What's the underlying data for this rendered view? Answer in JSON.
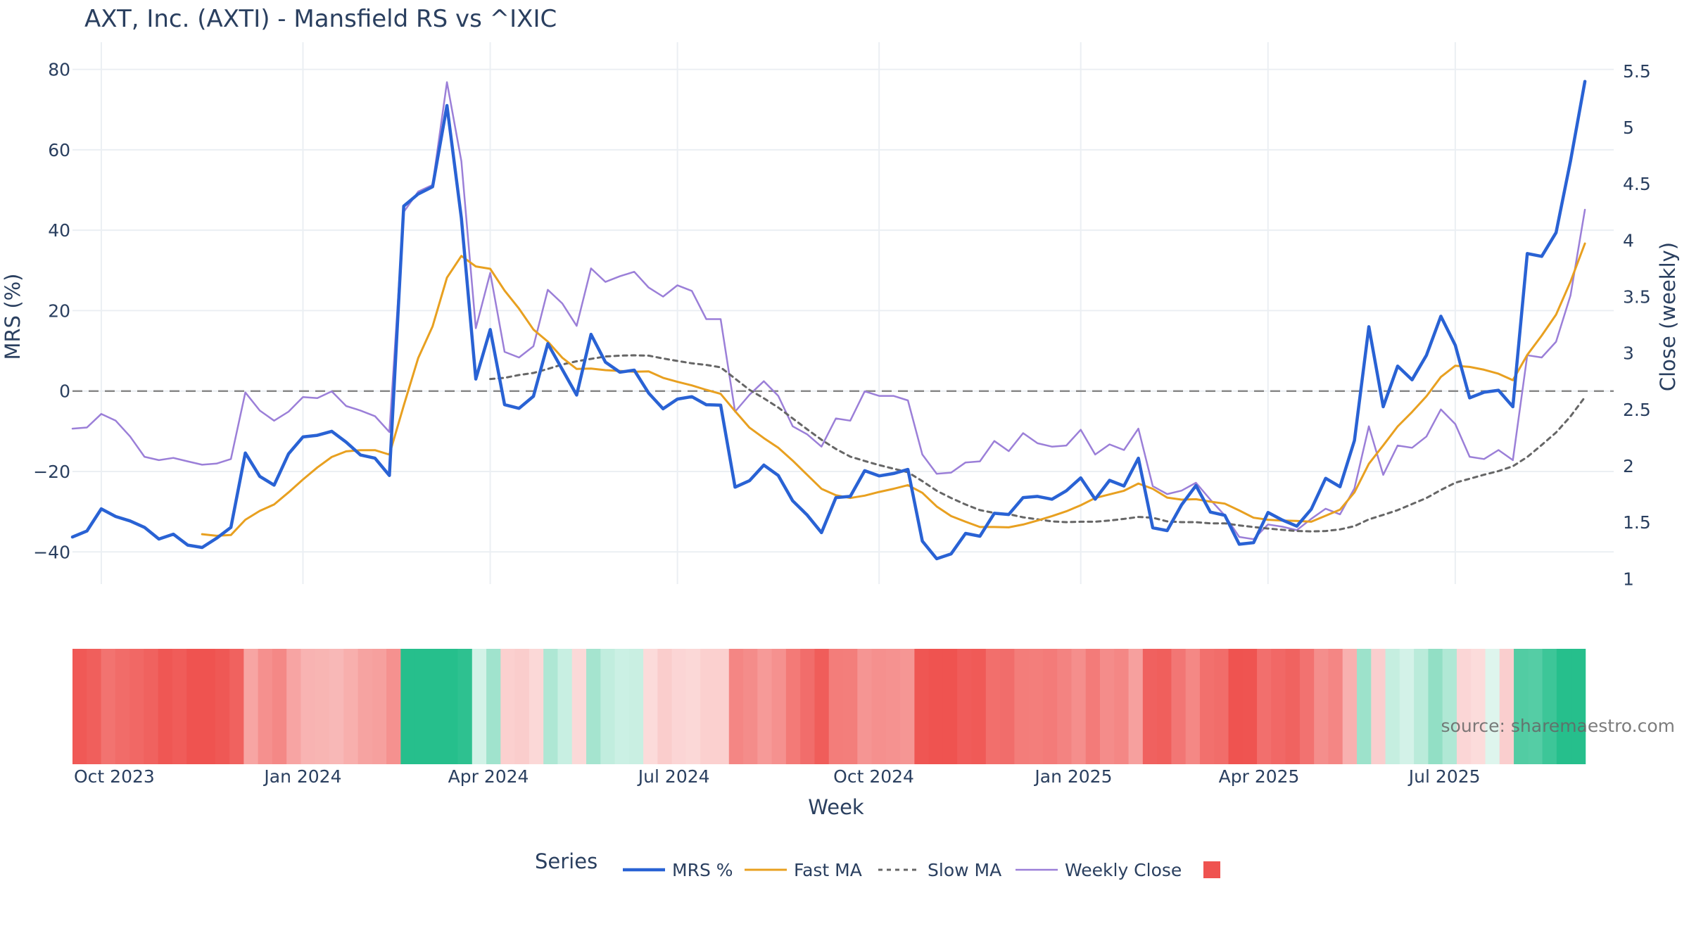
{
  "chart_data": {
    "type": "line",
    "title": "AXT, Inc. (AXTI) - Mansfield RS vs ^IXIC",
    "xlabel": "Week",
    "ylabel_left": "MRS (%)",
    "ylabel_right": "Close (weekly)",
    "ylim_left": [
      -48,
      85
    ],
    "ylim_right": [
      0.952,
      5.692
    ],
    "y_ticks_left": [
      80,
      60,
      40,
      20,
      0,
      -20,
      -40
    ],
    "y_tick_labels_left": [
      "80",
      "60",
      "40",
      "20",
      "0",
      "−20",
      "−40"
    ],
    "y_ticks_right": [
      5.5,
      5,
      4.5,
      4,
      3.5,
      3,
      2.5,
      2,
      1.5,
      1
    ],
    "y_tick_labels_right": [
      "5.5",
      "5",
      "4.5",
      "4",
      "3.5",
      "3",
      "2.5",
      "2",
      "1.5",
      "1"
    ],
    "x_tick_index": [
      2,
      16,
      29,
      42,
      56,
      70,
      83,
      96
    ],
    "x_tick_labels": [
      "Oct 2023",
      "Jan 2024",
      "Apr 2024",
      "Jul 2024",
      "Oct 2024",
      "Jan 2025",
      "Apr 2025",
      "Jul 2025"
    ],
    "zero_line": 0,
    "legend_title": "Series",
    "legend_position": "bottom",
    "source_text": "source: sharemaestro.com",
    "colors": {
      "mrs": "#2962d4",
      "fast": "#e8a020",
      "slow": "#666666",
      "close": "#9b7fd8",
      "grid": "#ebeff3",
      "zero": "#888888",
      "neg": "#ef5350",
      "pos": "#26bf8c"
    },
    "weeks": 108,
    "series": [
      {
        "name": "MRS %",
        "axis": "left",
        "values": [
          -36.3,
          -34.8,
          -29.3,
          -31.2,
          -32.3,
          -33.9,
          -36.8,
          -35.6,
          -38.3,
          -38.9,
          -36.6,
          -33.9,
          -15.4,
          -21.2,
          -23.4,
          -15.6,
          -11.4,
          -11,
          -10,
          -12.7,
          -15.9,
          -16.7,
          -21,
          46,
          49,
          50.8,
          71,
          43,
          3,
          15.3,
          -3.4,
          -4.3,
          -1.3,
          11.8,
          5.4,
          -1,
          14.1,
          7.2,
          4.7,
          5.2,
          -0.5,
          -4.4,
          -2,
          -1.4,
          -3.4,
          -3.5,
          -23.9,
          -22.3,
          -18.4,
          -21,
          -27.3,
          -30.8,
          -35.2,
          -26.5,
          -26.2,
          -19.8,
          -21.1,
          -20.5,
          -19.5,
          -37.3,
          -41.7,
          -40.5,
          -35.4,
          -36.1,
          -30.4,
          -30.7,
          -26.5,
          -26.2,
          -26.9,
          -24.8,
          -21.6,
          -26.9,
          -22.2,
          -23.6,
          -16.7,
          -34,
          -34.7,
          -28.3,
          -23.5,
          -30.1,
          -30.9,
          -38.1,
          -37.7,
          -30.2,
          -32.1,
          -33.6,
          -29.4,
          -21.7,
          -23.8,
          -12.3,
          16,
          -3.9,
          6.2,
          2.8,
          8.9,
          18.6,
          11.4,
          -1.7,
          -0.3,
          0.2,
          -3.9,
          34.2,
          33.5,
          39.4,
          57.2,
          77
        ]
      },
      {
        "name": "Fast MA",
        "axis": "left",
        "values": [
          null,
          null,
          null,
          null,
          null,
          null,
          null,
          null,
          null,
          -35.6,
          -36,
          -35.8,
          -32,
          -29.8,
          -28.2,
          -25.2,
          -22,
          -19,
          -16.4,
          -15,
          -14.7,
          -14.7,
          -15.8,
          -3.6,
          8.2,
          16.1,
          28.2,
          33.6,
          31,
          30.4,
          25,
          20.5,
          15.3,
          12.3,
          8.3,
          5.5,
          5.6,
          5.2,
          5,
          4.8,
          4.9,
          3.3,
          2.3,
          1.4,
          0.3,
          -0.7,
          -5,
          -9.1,
          -11.7,
          -14.1,
          -17.3,
          -20.8,
          -24.3,
          -25.9,
          -26.6,
          -26,
          -25.1,
          -24.3,
          -23.4,
          -25.3,
          -28.7,
          -31.1,
          -32.5,
          -33.8,
          -33.8,
          -33.9,
          -33.2,
          -32.2,
          -31.1,
          -29.9,
          -28.4,
          -26.6,
          -25.7,
          -24.8,
          -23,
          -24.3,
          -26.5,
          -27,
          -26.9,
          -27.5,
          -28,
          -29.7,
          -31.5,
          -32,
          -32.2,
          -32.3,
          -32.5,
          -31,
          -29.5,
          -25.2,
          -18.1,
          -13.5,
          -8.8,
          -5.2,
          -1.3,
          3.5,
          6.3,
          6,
          5.3,
          4.3,
          2.7,
          9,
          13.8,
          19,
          27.2,
          36.7
        ]
      },
      {
        "name": "Slow MA",
        "axis": "left",
        "values": [
          null,
          null,
          null,
          null,
          null,
          null,
          null,
          null,
          null,
          null,
          null,
          null,
          null,
          null,
          null,
          null,
          null,
          null,
          null,
          null,
          null,
          null,
          null,
          null,
          null,
          null,
          null,
          null,
          null,
          3,
          3.3,
          4,
          4.5,
          5.5,
          6.6,
          7.4,
          8,
          8.6,
          8.8,
          8.9,
          8.8,
          8.1,
          7.5,
          6.9,
          6.5,
          5.9,
          3.1,
          0.3,
          -1.8,
          -4.1,
          -6.8,
          -9.5,
          -12.1,
          -14.4,
          -16.3,
          -17.4,
          -18.4,
          -19.3,
          -20.2,
          -22.4,
          -24.8,
          -26.6,
          -28.2,
          -29.6,
          -30.3,
          -30.6,
          -31.4,
          -31.9,
          -32.4,
          -32.6,
          -32.5,
          -32.5,
          -32.2,
          -31.8,
          -31.3,
          -31.5,
          -32.4,
          -32.6,
          -32.6,
          -32.9,
          -32.9,
          -33.4,
          -33.8,
          -34.2,
          -34.5,
          -34.8,
          -34.9,
          -34.8,
          -34.4,
          -33.6,
          -31.9,
          -30.8,
          -29.6,
          -28.1,
          -26.6,
          -24.6,
          -22.8,
          -21.8,
          -20.8,
          -19.9,
          -18.7,
          -16.4,
          -13.4,
          -10.3,
          -6.3,
          -1.5
        ]
      },
      {
        "name": "Weekly Close",
        "axis": "right",
        "values": [
          2.33,
          2.34,
          2.46,
          2.4,
          2.26,
          2.08,
          2.05,
          2.07,
          2.04,
          2.01,
          2.02,
          2.06,
          2.65,
          2.49,
          2.4,
          2.48,
          2.61,
          2.6,
          2.66,
          2.53,
          2.49,
          2.44,
          2.3,
          4.25,
          4.43,
          4.49,
          5.4,
          4.7,
          3.22,
          3.71,
          3.01,
          2.96,
          3.06,
          3.56,
          3.44,
          3.24,
          3.75,
          3.63,
          3.68,
          3.72,
          3.58,
          3.5,
          3.6,
          3.55,
          3.3,
          3.3,
          2.48,
          2.63,
          2.75,
          2.62,
          2.35,
          2.28,
          2.17,
          2.42,
          2.4,
          2.66,
          2.62,
          2.62,
          2.58,
          2.1,
          1.93,
          1.94,
          2.03,
          2.04,
          2.22,
          2.13,
          2.29,
          2.2,
          2.17,
          2.18,
          2.32,
          2.1,
          2.19,
          2.14,
          2.33,
          1.82,
          1.75,
          1.78,
          1.85,
          1.7,
          1.56,
          1.37,
          1.35,
          1.48,
          1.46,
          1.43,
          1.53,
          1.62,
          1.57,
          1.8,
          2.35,
          1.92,
          2.18,
          2.16,
          2.26,
          2.5,
          2.37,
          2.08,
          2.06,
          2.14,
          2.05,
          2.98,
          2.96,
          3.1,
          3.51,
          4.27
        ]
      }
    ],
    "heatmap_strip": {
      "description": "weekly MRS regime strip",
      "values": [
        -36.3,
        -34.8,
        -29.3,
        -31.2,
        -32.3,
        -33.9,
        -36.8,
        -35.6,
        -38.3,
        -38.9,
        -36.6,
        -33.9,
        -15.4,
        -21.2,
        -23.4,
        -15.6,
        -11.4,
        -11,
        -10,
        -12.7,
        -15.9,
        -16.7,
        -21,
        46,
        49,
        50.8,
        71,
        43,
        3,
        15.3,
        -3.4,
        -4.3,
        -1.3,
        11.8,
        5.4,
        -1,
        14.1,
        7.2,
        4.7,
        5.2,
        -0.5,
        -4.4,
        -2,
        -1.4,
        -3.4,
        -3.5,
        -23.9,
        -22.3,
        -18.4,
        -21,
        -27.3,
        -30.8,
        -35.2,
        -26.5,
        -26.2,
        -19.8,
        -21.1,
        -20.5,
        -19.5,
        -37.3,
        -41.7,
        -40.5,
        -35.4,
        -36.1,
        -30.4,
        -30.7,
        -26.5,
        -26.2,
        -26.9,
        -24.8,
        -21.6,
        -26.9,
        -22.2,
        -23.6,
        -16.7,
        -34,
        -34.7,
        -28.3,
        -23.5,
        -30.1,
        -30.9,
        -38.1,
        -37.7,
        -30.2,
        -32.1,
        -33.6,
        -29.4,
        -21.7,
        -23.8,
        -12.3,
        16,
        -3.9,
        6.2,
        2.8,
        8.9,
        18.6,
        11.4,
        -1.7,
        -0.3,
        0.2,
        -3.9,
        34.2,
        33.5,
        39.4,
        57.2,
        77
      ]
    }
  }
}
